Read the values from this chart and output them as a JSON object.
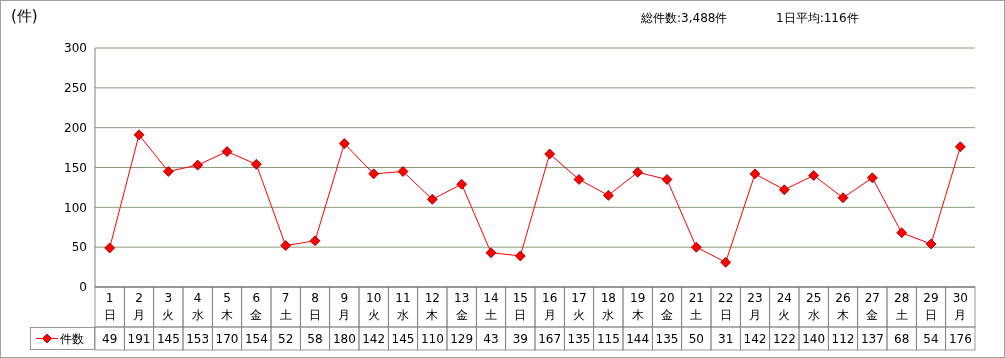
{
  "chart_data": {
    "type": "line",
    "ylabel": "(件)",
    "annotations": [
      "総件数:3,488件",
      "1日平均:116件"
    ],
    "categories": [
      "1\n日",
      "2\n月",
      "3\n火",
      "4\n水",
      "5\n木",
      "6\n金",
      "7\n土",
      "8\n日",
      "9\n月",
      "10\n火",
      "11\n水",
      "12\n木",
      "13\n金",
      "14\n土",
      "15\n日",
      "16\n月",
      "17\n火",
      "18\n水",
      "19\n木",
      "20\n金",
      "21\n土",
      "22\n日",
      "23\n月",
      "24\n火",
      "25\n水",
      "26\n木",
      "27\n金",
      "28\n土",
      "29\n日",
      "30\n月"
    ],
    "series": [
      {
        "name": "件数",
        "color": "#ff0000",
        "values": [
          49,
          191,
          145,
          153,
          170,
          154,
          52,
          58,
          180,
          142,
          145,
          110,
          129,
          43,
          39,
          167,
          135,
          115,
          144,
          135,
          50,
          31,
          142,
          122,
          140,
          112,
          137,
          68,
          54,
          176
        ]
      }
    ],
    "ylim": [
      0,
      300
    ],
    "yticks": [
      0,
      50,
      100,
      150,
      200,
      250,
      300
    ],
    "grid": "y",
    "legend": "bottom left",
    "marker": "diamond",
    "line_style": "solid",
    "data_labels": true
  }
}
